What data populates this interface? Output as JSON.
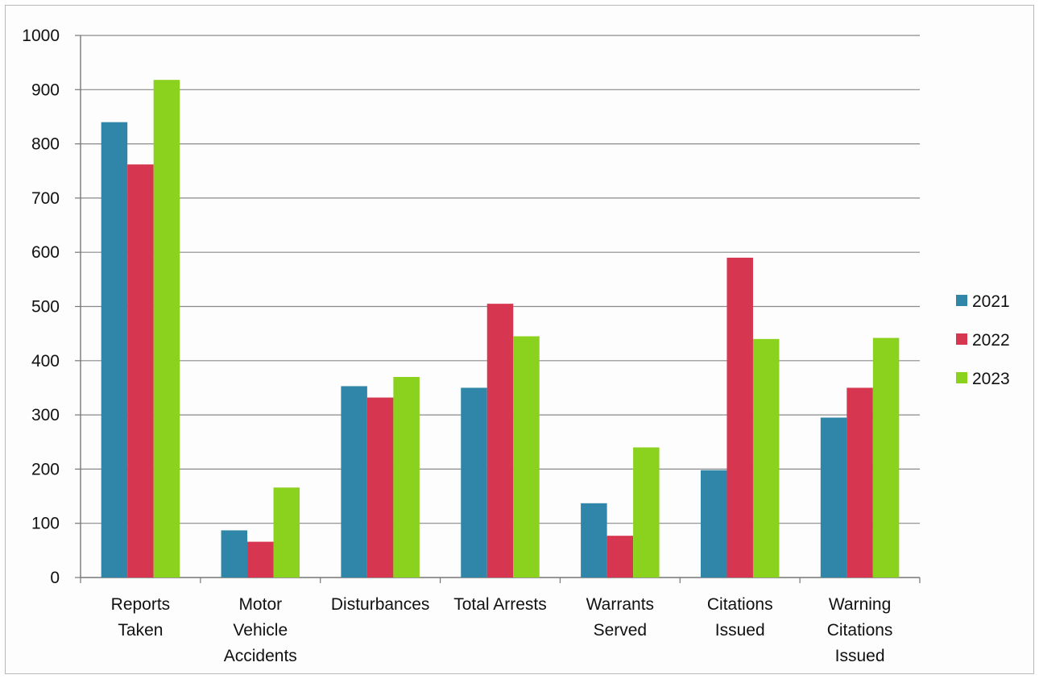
{
  "chart_data": {
    "type": "bar",
    "title": "",
    "xlabel": "",
    "ylabel": "",
    "ylim": [
      0,
      1000
    ],
    "yticks": [
      0,
      100,
      200,
      300,
      400,
      500,
      600,
      700,
      800,
      900,
      1000
    ],
    "grid": true,
    "legend_position": "right",
    "categories": [
      [
        "Reports",
        "Taken"
      ],
      [
        "Motor",
        "Vehicle",
        "Accidents"
      ],
      [
        "Disturbances"
      ],
      [
        "Total Arrests"
      ],
      [
        "Warrants",
        "Served"
      ],
      [
        "Citations",
        "Issued"
      ],
      [
        "Warning",
        "Citations",
        "Issued"
      ]
    ],
    "series": [
      {
        "name": "2021",
        "color": "#2f86a8",
        "values": [
          840,
          87,
          353,
          350,
          137,
          198,
          295
        ]
      },
      {
        "name": "2022",
        "color": "#d6364f",
        "values": [
          762,
          66,
          332,
          505,
          77,
          590,
          350
        ]
      },
      {
        "name": "2023",
        "color": "#8bd21e",
        "values": [
          918,
          166,
          370,
          445,
          240,
          440,
          442
        ]
      }
    ]
  }
}
